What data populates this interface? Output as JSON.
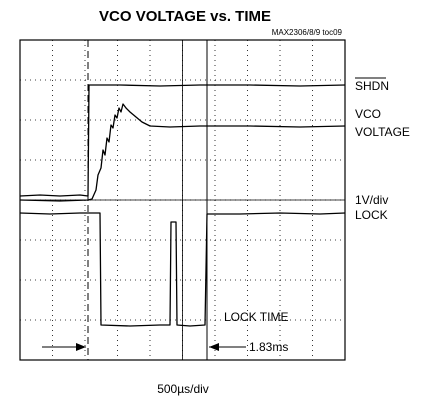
{
  "chart_data": {
    "type": "oscilloscope",
    "title": "VCO VOLTAGE vs. TIME",
    "figure_id": "MAX2306/8/9 toc09",
    "trace_labels": [
      "SHDN",
      "VCO",
      "VOLTAGE",
      "1V/div",
      "LOCK"
    ],
    "annotation": "LOCK TIME",
    "measurement": "1.83ms",
    "time_scale": "500µs/div"
  }
}
